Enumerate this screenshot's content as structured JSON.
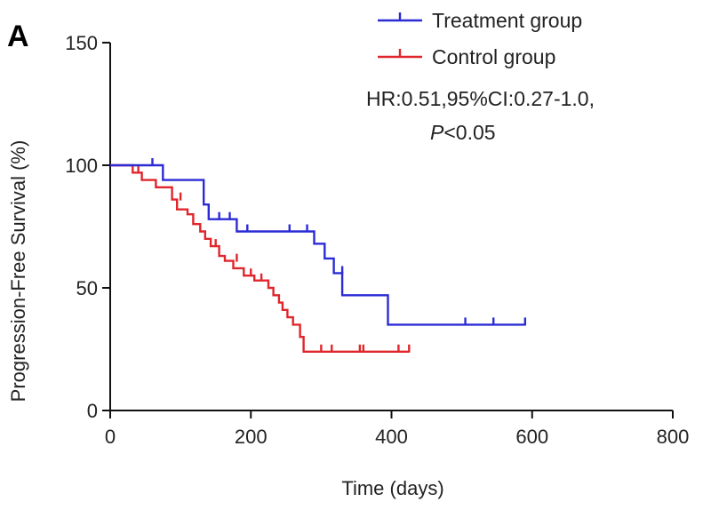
{
  "figure": {
    "panel_letter": "A",
    "annotation_line1": "HR:0.51,95%CI:0.27-1.0,",
    "annotation_p_symbol": "P",
    "annotation_p_value": "<0.05"
  },
  "chart_data": {
    "type": "line",
    "subtype": "kaplan-meier",
    "title": "",
    "xlabel": "Time (days)",
    "ylabel": "Progression-Free Survival (%)",
    "xlim": [
      0,
      800
    ],
    "ylim": [
      0,
      150
    ],
    "xticks": [
      0,
      200,
      400,
      600,
      800
    ],
    "yticks": [
      0,
      50,
      100,
      150
    ],
    "grid": false,
    "legend_position": "top-right",
    "series": [
      {
        "name": "Treatment group",
        "color": "#2b2bd6",
        "steps": [
          [
            0,
            100
          ],
          [
            75,
            100
          ],
          [
            75,
            94
          ],
          [
            133,
            94
          ],
          [
            133,
            84
          ],
          [
            140,
            84
          ],
          [
            140,
            78
          ],
          [
            180,
            78
          ],
          [
            180,
            73
          ],
          [
            290,
            73
          ],
          [
            290,
            68
          ],
          [
            305,
            68
          ],
          [
            305,
            62
          ],
          [
            318,
            62
          ],
          [
            318,
            56
          ],
          [
            330,
            56
          ],
          [
            330,
            47
          ],
          [
            395,
            47
          ],
          [
            395,
            35
          ],
          [
            590,
            35
          ]
        ],
        "censored": [
          [
            60,
            100
          ],
          [
            155,
            78
          ],
          [
            170,
            78
          ],
          [
            195,
            73
          ],
          [
            255,
            73
          ],
          [
            280,
            73
          ],
          [
            330,
            56
          ],
          [
            505,
            35
          ],
          [
            545,
            35
          ],
          [
            590,
            35
          ]
        ]
      },
      {
        "name": "Control group",
        "color": "#e0262b",
        "steps": [
          [
            0,
            100
          ],
          [
            32,
            100
          ],
          [
            32,
            97
          ],
          [
            45,
            97
          ],
          [
            45,
            94
          ],
          [
            65,
            94
          ],
          [
            65,
            91
          ],
          [
            88,
            91
          ],
          [
            88,
            86
          ],
          [
            95,
            86
          ],
          [
            95,
            82
          ],
          [
            110,
            82
          ],
          [
            110,
            80
          ],
          [
            118,
            80
          ],
          [
            118,
            76
          ],
          [
            128,
            76
          ],
          [
            128,
            73
          ],
          [
            135,
            73
          ],
          [
            135,
            70
          ],
          [
            143,
            70
          ],
          [
            143,
            67
          ],
          [
            155,
            67
          ],
          [
            155,
            63
          ],
          [
            163,
            63
          ],
          [
            163,
            61
          ],
          [
            175,
            61
          ],
          [
            175,
            58
          ],
          [
            190,
            58
          ],
          [
            190,
            55
          ],
          [
            205,
            55
          ],
          [
            205,
            53
          ],
          [
            225,
            53
          ],
          [
            225,
            50
          ],
          [
            232,
            50
          ],
          [
            232,
            47
          ],
          [
            240,
            47
          ],
          [
            240,
            44
          ],
          [
            245,
            44
          ],
          [
            245,
            41
          ],
          [
            252,
            41
          ],
          [
            252,
            38
          ],
          [
            260,
            38
          ],
          [
            260,
            35
          ],
          [
            270,
            35
          ],
          [
            270,
            30
          ],
          [
            275,
            30
          ],
          [
            275,
            24
          ],
          [
            425,
            24
          ]
        ],
        "censored": [
          [
            40,
            97
          ],
          [
            100,
            86
          ],
          [
            150,
            67
          ],
          [
            180,
            61
          ],
          [
            200,
            55
          ],
          [
            215,
            53
          ],
          [
            300,
            24
          ],
          [
            315,
            24
          ],
          [
            355,
            24
          ],
          [
            360,
            24
          ],
          [
            410,
            24
          ],
          [
            425,
            24
          ]
        ]
      }
    ]
  }
}
